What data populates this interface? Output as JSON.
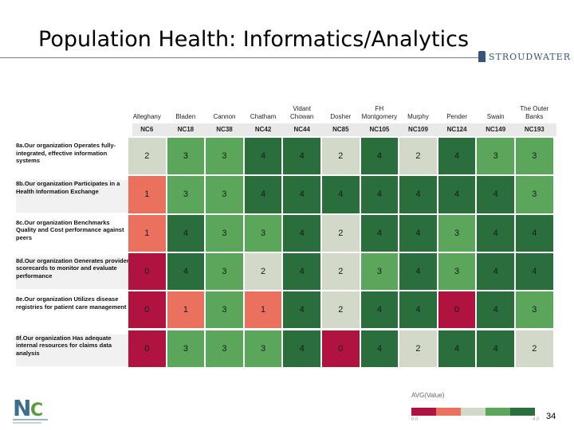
{
  "slide": {
    "title": "Population Health:  Informatics/Analytics",
    "brand": "STROUDWATER",
    "page_number": "34"
  },
  "legend": {
    "title": "AVG(Value)",
    "min_label": "0.0",
    "max_label": "4.0",
    "colors": [
      "#b0143e",
      "#e9715e",
      "#d2d9c8",
      "#5aa75b",
      "#2a6e3c"
    ]
  },
  "chart_data": {
    "type": "heatmap",
    "title": "Population Health: Informatics/Analytics",
    "columns": [
      {
        "county": "Alleghany",
        "code": "NC6"
      },
      {
        "county": "Bladen",
        "code": "NC18"
      },
      {
        "county": "Cannon",
        "code": "NC38"
      },
      {
        "county": "Chatham",
        "code": "NC42"
      },
      {
        "county": "Vidant Chowan",
        "code": "NC44"
      },
      {
        "county": "Dosher",
        "code": "NC85"
      },
      {
        "county": "FH Montgomery",
        "code": "NC105"
      },
      {
        "county": "Murphy",
        "code": "NC109"
      },
      {
        "county": "Pender",
        "code": "NC124"
      },
      {
        "county": "Swain",
        "code": "NC149"
      },
      {
        "county": "The Outer Banks",
        "code": "NC193"
      }
    ],
    "rows": [
      "8a.Our organization Operates fully-integrated, effective information systems",
      "8b.Our organization Participates in a Health Information Exchange",
      "8c.Our organization Benchmarks Quality and Cost performance against peers",
      "8d.Our organization Generates provider scorecards to monitor and evaluate performance",
      "8e.Our organization Utilizes disease registries for patient care management",
      "8f.Our organization Has adequate internal resources for claims data analysis"
    ],
    "values": [
      [
        2,
        3,
        3,
        4,
        4,
        2,
        4,
        2,
        4,
        3,
        3
      ],
      [
        1,
        3,
        3,
        4,
        4,
        4,
        4,
        4,
        4,
        4,
        3
      ],
      [
        1,
        4,
        3,
        3,
        4,
        2,
        4,
        4,
        3,
        4,
        4
      ],
      [
        0,
        4,
        3,
        2,
        4,
        2,
        3,
        4,
        3,
        4,
        4
      ],
      [
        0,
        1,
        3,
        1,
        4,
        2,
        4,
        4,
        0,
        4,
        3
      ],
      [
        0,
        3,
        3,
        3,
        4,
        0,
        4,
        2,
        4,
        4,
        2
      ]
    ],
    "value_range": [
      0,
      4
    ],
    "legend_label": "AVG(Value)"
  }
}
